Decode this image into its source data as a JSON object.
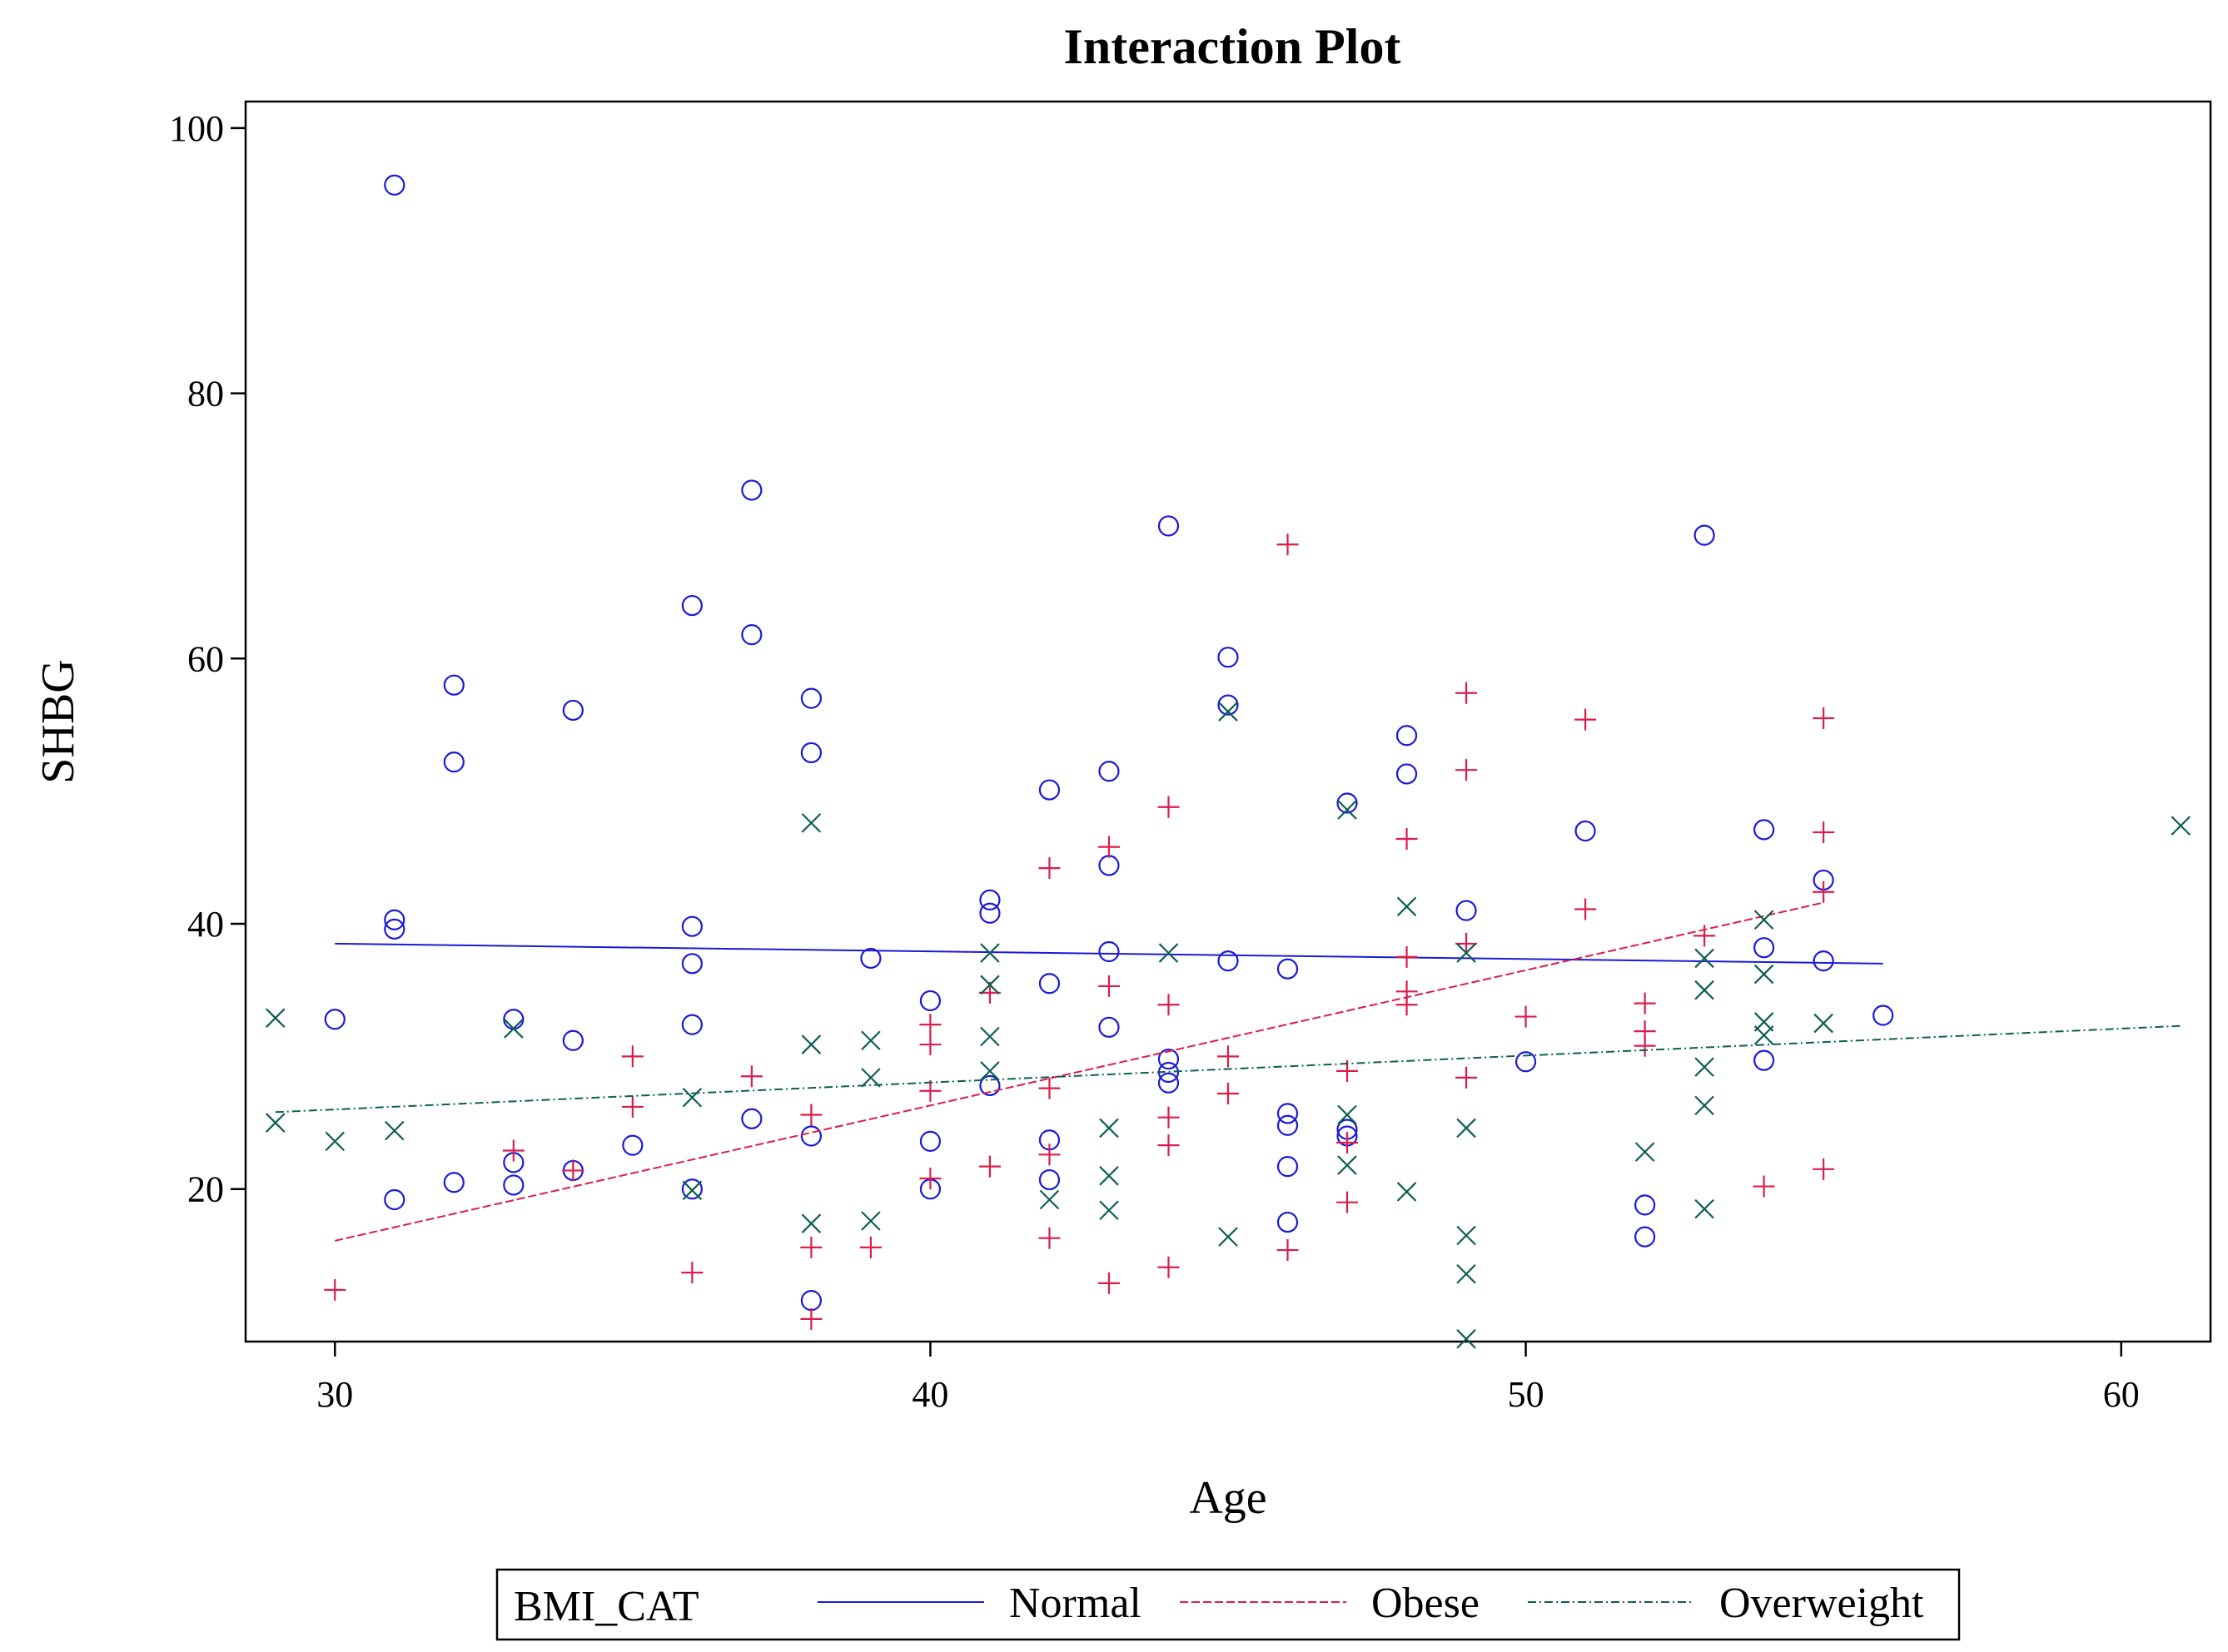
{
  "chart_data": {
    "type": "scatter",
    "title": "Interaction Plot",
    "xlabel": "Age",
    "ylabel": "SHBG",
    "xlim": [
      28.5,
      61.5
    ],
    "ylim": [
      8.5,
      102
    ],
    "xticks": [
      30,
      40,
      50,
      60
    ],
    "yticks": [
      20,
      40,
      60,
      80,
      100
    ],
    "grid": false,
    "legend": {
      "title": "BMI_CAT",
      "position": "bottom",
      "entries": [
        "Normal",
        "Obese",
        "Overweight"
      ]
    },
    "series": [
      {
        "name": "Normal",
        "marker": "circle",
        "color": "#1a1ad8",
        "line_style": "solid",
        "fit_line": [
          [
            30,
            38.5
          ],
          [
            56,
            37.0
          ]
        ],
        "points": [
          [
            30,
            32.8
          ],
          [
            31,
            95.7
          ],
          [
            31,
            40.3
          ],
          [
            31,
            39.6
          ],
          [
            31,
            19.2
          ],
          [
            32,
            58.0
          ],
          [
            32,
            52.2
          ],
          [
            32,
            20.5
          ],
          [
            33,
            32.8
          ],
          [
            33,
            22.0
          ],
          [
            33,
            20.3
          ],
          [
            34,
            56.1
          ],
          [
            34,
            31.2
          ],
          [
            34,
            21.4
          ],
          [
            35,
            23.3
          ],
          [
            36,
            64.0
          ],
          [
            36,
            39.8
          ],
          [
            36,
            37.0
          ],
          [
            36,
            32.4
          ],
          [
            36,
            20.0
          ],
          [
            37,
            72.7
          ],
          [
            37,
            61.8
          ],
          [
            37,
            25.3
          ],
          [
            38,
            57.0
          ],
          [
            38,
            52.9
          ],
          [
            38,
            24.0
          ],
          [
            38,
            11.6
          ],
          [
            39,
            37.4
          ],
          [
            40,
            34.2
          ],
          [
            40,
            23.6
          ],
          [
            40,
            20.0
          ],
          [
            41,
            41.8
          ],
          [
            41,
            40.8
          ],
          [
            41,
            27.8
          ],
          [
            42,
            50.1
          ],
          [
            42,
            35.5
          ],
          [
            42,
            23.7
          ],
          [
            42,
            20.7
          ],
          [
            43,
            51.5
          ],
          [
            43,
            44.4
          ],
          [
            43,
            37.9
          ],
          [
            43,
            32.2
          ],
          [
            44,
            70.0
          ],
          [
            44,
            29.8
          ],
          [
            44,
            28.8
          ],
          [
            44,
            28.0
          ],
          [
            45,
            60.1
          ],
          [
            45,
            56.5
          ],
          [
            45,
            37.2
          ],
          [
            46,
            36.6
          ],
          [
            46,
            25.7
          ],
          [
            46,
            24.8
          ],
          [
            46,
            21.7
          ],
          [
            46,
            17.5
          ],
          [
            47,
            49.1
          ],
          [
            47,
            24.5
          ],
          [
            47,
            24.0
          ],
          [
            48,
            54.2
          ],
          [
            48,
            51.3
          ],
          [
            49,
            41.0
          ],
          [
            50,
            29.6
          ],
          [
            51,
            47.0
          ],
          [
            52,
            18.8
          ],
          [
            52,
            16.4
          ],
          [
            53,
            69.3
          ],
          [
            54,
            47.1
          ],
          [
            54,
            38.2
          ],
          [
            54,
            29.7
          ],
          [
            55,
            43.3
          ],
          [
            55,
            37.2
          ],
          [
            56,
            33.1
          ]
        ]
      },
      {
        "name": "Obese",
        "marker": "plus",
        "color": "#dd1c4a",
        "line_style": "dashed",
        "fit_line": [
          [
            30,
            16.1
          ],
          [
            55,
            41.6
          ]
        ],
        "points": [
          [
            30,
            12.4
          ],
          [
            33,
            22.9
          ],
          [
            34,
            21.4
          ],
          [
            35,
            30.0
          ],
          [
            35,
            26.2
          ],
          [
            36,
            13.7
          ],
          [
            37,
            28.5
          ],
          [
            38,
            25.6
          ],
          [
            38,
            15.6
          ],
          [
            38,
            10.2
          ],
          [
            39,
            15.6
          ],
          [
            40,
            32.4
          ],
          [
            40,
            30.9
          ],
          [
            40,
            27.4
          ],
          [
            40,
            20.8
          ],
          [
            41,
            34.8
          ],
          [
            41,
            21.7
          ],
          [
            42,
            44.2
          ],
          [
            42,
            27.6
          ],
          [
            42,
            22.6
          ],
          [
            42,
            16.3
          ],
          [
            43,
            45.8
          ],
          [
            43,
            35.3
          ],
          [
            43,
            12.9
          ],
          [
            44,
            48.8
          ],
          [
            44,
            33.9
          ],
          [
            44,
            25.4
          ],
          [
            44,
            23.3
          ],
          [
            44,
            14.1
          ],
          [
            45,
            30.0
          ],
          [
            45,
            27.2
          ],
          [
            46,
            68.6
          ],
          [
            46,
            15.4
          ],
          [
            47,
            28.9
          ],
          [
            47,
            23.5
          ],
          [
            47,
            19.0
          ],
          [
            48,
            46.4
          ],
          [
            48,
            37.5
          ],
          [
            48,
            34.9
          ],
          [
            48,
            33.9
          ],
          [
            49,
            57.4
          ],
          [
            49,
            51.6
          ],
          [
            49,
            38.5
          ],
          [
            49,
            28.4
          ],
          [
            50,
            33.0
          ],
          [
            51,
            55.4
          ],
          [
            51,
            41.1
          ],
          [
            52,
            34.0
          ],
          [
            52,
            31.9
          ],
          [
            52,
            30.8
          ],
          [
            53,
            39.1
          ],
          [
            54,
            20.2
          ],
          [
            55,
            55.5
          ],
          [
            55,
            46.9
          ],
          [
            55,
            42.4
          ],
          [
            55,
            21.5
          ]
        ]
      },
      {
        "name": "Overweight",
        "marker": "x",
        "color": "#0e5e52",
        "line_style": "dashdot",
        "fit_line": [
          [
            29,
            25.8
          ],
          [
            61,
            32.3
          ]
        ],
        "points": [
          [
            29,
            32.9
          ],
          [
            29,
            25.0
          ],
          [
            30,
            23.6
          ],
          [
            31,
            24.4
          ],
          [
            33,
            32.1
          ],
          [
            36,
            26.9
          ],
          [
            36,
            19.9
          ],
          [
            38,
            47.6
          ],
          [
            38,
            30.9
          ],
          [
            38,
            17.4
          ],
          [
            39,
            31.2
          ],
          [
            39,
            28.4
          ],
          [
            39,
            17.6
          ],
          [
            41,
            37.8
          ],
          [
            41,
            35.4
          ],
          [
            41,
            31.5
          ],
          [
            41,
            28.9
          ],
          [
            42,
            19.2
          ],
          [
            43,
            24.6
          ],
          [
            43,
            21.0
          ],
          [
            43,
            18.4
          ],
          [
            44,
            37.8
          ],
          [
            45,
            56.0
          ],
          [
            45,
            16.4
          ],
          [
            47,
            48.6
          ],
          [
            47,
            25.6
          ],
          [
            47,
            21.8
          ],
          [
            48,
            41.3
          ],
          [
            48,
            19.8
          ],
          [
            49,
            37.8
          ],
          [
            49,
            24.6
          ],
          [
            49,
            16.5
          ],
          [
            49,
            13.6
          ],
          [
            49,
            8.7
          ],
          [
            52,
            22.8
          ],
          [
            53,
            37.4
          ],
          [
            53,
            35.0
          ],
          [
            53,
            29.2
          ],
          [
            53,
            26.3
          ],
          [
            53,
            18.5
          ],
          [
            54,
            40.3
          ],
          [
            54,
            36.2
          ],
          [
            54,
            32.6
          ],
          [
            54,
            31.6
          ],
          [
            55,
            32.5
          ],
          [
            61,
            47.4
          ]
        ]
      }
    ]
  }
}
